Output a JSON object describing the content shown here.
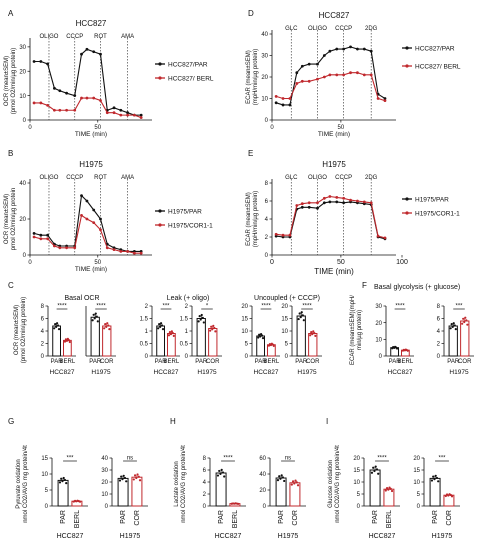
{
  "panel_letters": [
    "A",
    "B",
    "C",
    "D",
    "E",
    "F",
    "G",
    "H",
    "I"
  ],
  "colors": {
    "par": "#111111",
    "res": "#c0282d"
  },
  "chart_data": [
    {
      "id": "A",
      "type": "line",
      "title": "HCC827",
      "xlabel": "TIME (min)",
      "ylabel": "OCR (mean±SEM)\n(pmol O2/min/µg protein)",
      "xlim": [
        0,
        90
      ],
      "ylim": [
        0,
        32
      ],
      "xticks": [
        0,
        50
      ],
      "yticks": [
        0,
        10,
        20,
        30
      ],
      "vlines": [
        14,
        33,
        52,
        72
      ],
      "vline_labels": [
        "OLIGO",
        "CCCP",
        "ROT",
        "AMA"
      ],
      "x": [
        3,
        8,
        13,
        18,
        22,
        27,
        33,
        38,
        42,
        47,
        52,
        57,
        62,
        67,
        72,
        77,
        82
      ],
      "series": [
        {
          "name": "HCC827/PAR",
          "color": "#111111",
          "values": [
            24,
            24,
            23,
            13,
            12,
            11,
            10,
            27,
            29,
            28,
            27,
            4,
            5,
            4,
            3,
            2,
            2
          ]
        },
        {
          "name": "HCC827/ BERL",
          "color": "#c0282d",
          "values": [
            7,
            7,
            6,
            4,
            4,
            4,
            4,
            9,
            9,
            9,
            8,
            3,
            3,
            2,
            2,
            2,
            1
          ]
        }
      ]
    },
    {
      "id": "B",
      "type": "line",
      "title": "H1975",
      "xlabel": "TIME (min)",
      "ylabel": "OCR (mean±SEM)\npmol O2/min/µg protein",
      "xlim": [
        0,
        90
      ],
      "ylim": [
        0,
        40
      ],
      "xticks": [
        0,
        50
      ],
      "yticks": [
        0,
        20,
        40
      ],
      "vlines": [
        14,
        33,
        52,
        72
      ],
      "vline_labels": [
        "OLIGO",
        "CCCP",
        "ROT",
        "AMA"
      ],
      "x": [
        3,
        8,
        13,
        18,
        22,
        27,
        33,
        38,
        42,
        47,
        52,
        57,
        62,
        67,
        72,
        77,
        82
      ],
      "series": [
        {
          "name": "H1975/PAR",
          "color": "#111111",
          "values": [
            12,
            11,
            11,
            6,
            5,
            5,
            5,
            33,
            30,
            25,
            20,
            6,
            4,
            3,
            2,
            2,
            2
          ]
        },
        {
          "name": "H1975/COR1-1",
          "color": "#c0282d",
          "values": [
            10,
            9,
            9,
            5,
            4,
            4,
            4,
            22,
            20,
            18,
            14,
            4,
            3,
            2,
            2,
            1,
            1
          ]
        }
      ]
    },
    {
      "id": "D",
      "type": "line",
      "title": "HCC827",
      "xlabel": "TIME (min)",
      "ylabel": "ECAR (mean±SEM)\n(mpH/min/µg protein)",
      "xlim": [
        0,
        90
      ],
      "ylim": [
        0,
        40
      ],
      "xticks": [
        0,
        50
      ],
      "yticks": [
        0,
        10,
        20,
        30,
        40
      ],
      "vlines": [
        14,
        33,
        52,
        72
      ],
      "vline_labels": [
        "GLC",
        "OLIGO",
        "CCCP",
        "2DG"
      ],
      "x": [
        3,
        8,
        13,
        18,
        22,
        27,
        33,
        38,
        42,
        47,
        52,
        57,
        62,
        67,
        72,
        77,
        82
      ],
      "series": [
        {
          "name": "HCC827/PAR",
          "color": "#111111",
          "values": [
            8,
            7,
            7,
            22,
            25,
            26,
            26,
            30,
            32,
            33,
            33,
            34,
            33,
            33,
            32,
            12,
            10
          ]
        },
        {
          "name": "HCC827/ BERL",
          "color": "#c0282d",
          "values": [
            11,
            10,
            10,
            17,
            18,
            18,
            19,
            20,
            21,
            21,
            21,
            22,
            22,
            21,
            21,
            10,
            9
          ]
        }
      ]
    },
    {
      "id": "E",
      "type": "line",
      "title": "H1975",
      "xlabel": "TIME (min)",
      "ylabel": "ECAR (mean±SEM)\n(mpH/min/µg protein)",
      "xlim": [
        0,
        90
      ],
      "ylim": [
        0,
        8
      ],
      "xticks": [
        0,
        50,
        100
      ],
      "yticks": [
        0,
        2,
        4,
        6,
        8
      ],
      "vlines": [
        14,
        33,
        52,
        72
      ],
      "vline_labels": [
        "GLC",
        "OLIGO",
        "CCCP",
        "2DG"
      ],
      "x": [
        3,
        8,
        13,
        18,
        22,
        27,
        33,
        38,
        42,
        47,
        52,
        57,
        62,
        67,
        72,
        77,
        82
      ],
      "series": [
        {
          "name": "H1975/PAR",
          "color": "#111111",
          "values": [
            2.1,
            2.0,
            2.0,
            5.1,
            5.3,
            5.3,
            5.2,
            5.8,
            5.9,
            5.9,
            5.8,
            5.9,
            5.8,
            5.7,
            5.6,
            2.0,
            1.8
          ]
        },
        {
          "name": "H1975/COR1-1",
          "color": "#c0282d",
          "values": [
            2.3,
            2.2,
            2.2,
            5.5,
            5.7,
            5.8,
            5.8,
            6.3,
            6.5,
            6.4,
            6.3,
            6.1,
            6.0,
            5.9,
            5.8,
            2.1,
            1.9
          ]
        }
      ]
    },
    {
      "id": "C1",
      "type": "bar",
      "title": "Basal OCR",
      "ylabel": "OCR (mean±SEM)\n(pmol O2/min/µg protein)",
      "ylim": [
        0,
        8
      ],
      "yticks": [
        0,
        2,
        4,
        6,
        8
      ],
      "groups": [
        {
          "label": "HCC827",
          "categories": [
            "PAR",
            "BERL"
          ],
          "values": [
            4.8,
            2.5
          ],
          "sig": "****"
        },
        {
          "label": "H1975",
          "categories": [
            "PAR",
            "COR"
          ],
          "values": [
            6.2,
            4.8
          ],
          "sig": "****"
        }
      ]
    },
    {
      "id": "C2",
      "type": "bar",
      "title": "Leak (+ oligo)",
      "ylim": [
        0,
        2
      ],
      "yticks": [
        0.0,
        0.5,
        1.0,
        1.5,
        2.0
      ],
      "groups": [
        {
          "label": "HCC827",
          "categories": [
            "PAR",
            "BERL"
          ],
          "values": [
            1.2,
            0.9
          ],
          "sig": "***"
        },
        {
          "label": "H1975",
          "categories": [
            "PAR",
            "COR"
          ],
          "values": [
            1.5,
            1.1
          ],
          "sig": "*"
        }
      ]
    },
    {
      "id": "C3",
      "type": "bar",
      "title": "Uncoupled (+ CCCP)",
      "ylim": [
        0,
        20
      ],
      "yticks": [
        0,
        5,
        10,
        15,
        20
      ],
      "groups": [
        {
          "label": "HCC827",
          "categories": [
            "PAR",
            "BERL"
          ],
          "values": [
            8.0,
            4.5
          ],
          "sig": "****"
        },
        {
          "label": "H1975",
          "categories": [
            "PAR",
            "COR"
          ],
          "values": [
            16.0,
            9.0
          ],
          "sig": "****"
        }
      ]
    },
    {
      "id": "F",
      "type": "bar",
      "title": "Basal glycolysis (+ glucose)",
      "ylabel": "ECAR (mean±SEM)(mpH/\nmin/µg protein)",
      "ylim": [
        0,
        8
      ],
      "yticks": [
        0,
        2,
        4,
        6,
        8
      ],
      "groups": [
        {
          "label": "HCC827",
          "categories": [
            "PAR",
            "BERL"
          ],
          "values": [
            5.0,
            3.5
          ],
          "sig": "****",
          "ylim": [
            0,
            30
          ],
          "yticks": [
            0,
            10,
            20,
            30
          ]
        },
        {
          "label": "H1975",
          "categories": [
            "PAR",
            "COR"
          ],
          "values": [
            4.8,
            5.6
          ],
          "sig": "***"
        }
      ]
    },
    {
      "id": "G",
      "type": "bar",
      "ylabel": "Pyruvate oxidation\nnmol CO2/AVG mg protein/4t",
      "ylim": [
        0,
        15
      ],
      "yticks": [
        0,
        5,
        10,
        15
      ],
      "groups": [
        {
          "label": "HCC827",
          "categories": [
            "PAR",
            "BERL"
          ],
          "values": [
            8.0,
            1.5
          ],
          "sig": "***",
          "ylim": [
            0,
            15
          ],
          "yticks": [
            0,
            5,
            10,
            15
          ]
        },
        {
          "label": "H1975",
          "categories": [
            "PAR",
            "COR"
          ],
          "values": [
            23,
            24
          ],
          "sig": "ns",
          "ylim": [
            0,
            40
          ],
          "yticks": [
            0,
            10,
            20,
            30,
            40
          ]
        }
      ]
    },
    {
      "id": "H",
      "type": "bar",
      "ylabel": "Lactate oxidation\nnmol CO2/AVG mg protein/4t",
      "ylim": [
        0,
        8
      ],
      "yticks": [
        0,
        2,
        4,
        6,
        8
      ],
      "groups": [
        {
          "label": "HCC827",
          "categories": [
            "PAR",
            "BERL"
          ],
          "values": [
            5.5,
            0.4
          ],
          "sig": "****",
          "ylim": [
            0,
            8
          ],
          "yticks": [
            0,
            2,
            4,
            6,
            8
          ]
        },
        {
          "label": "H1975",
          "categories": [
            "PAR",
            "COR"
          ],
          "values": [
            35,
            29
          ],
          "sig": "ns",
          "ylim": [
            0,
            60
          ],
          "yticks": [
            0,
            20,
            40,
            60
          ]
        }
      ]
    },
    {
      "id": "I",
      "type": "bar",
      "ylabel": "Glucose oxidation\nnmol CO2/AVG mg protein/4t",
      "ylim": [
        0,
        20
      ],
      "yticks": [
        0,
        5,
        10,
        15,
        20
      ],
      "groups": [
        {
          "label": "HCC827",
          "categories": [
            "PAR",
            "BERL"
          ],
          "values": [
            15,
            7
          ],
          "sig": "****",
          "ylim": [
            0,
            20
          ],
          "yticks": [
            0,
            5,
            10,
            15,
            20
          ]
        },
        {
          "label": "H1975",
          "categories": [
            "PAR",
            "COR"
          ],
          "values": [
            11.5,
            4.5
          ],
          "sig": "***",
          "ylim": [
            0,
            20
          ],
          "yticks": [
            0,
            5,
            10,
            15,
            20
          ]
        }
      ]
    }
  ]
}
